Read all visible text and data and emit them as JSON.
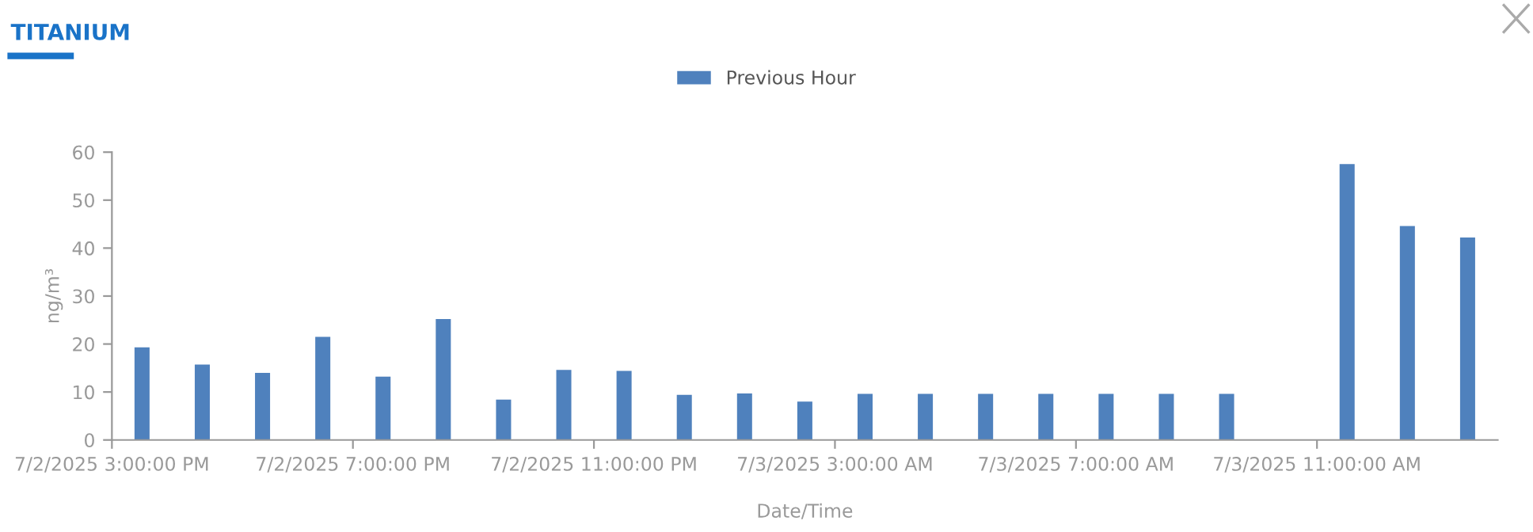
{
  "chart_data": {
    "type": "bar",
    "title": "TITANIUM",
    "xlabel": "Date/Time",
    "ylabel": "ng/m³",
    "categories": [
      "7/2/2025 3:00:00 PM",
      null,
      null,
      null,
      "7/2/2025 7:00:00 PM",
      null,
      null,
      null,
      "7/2/2025 11:00:00 PM",
      null,
      null,
      null,
      "7/3/2025 3:00:00 AM",
      null,
      null,
      null,
      "7/3/2025 7:00:00 AM",
      null,
      null,
      null,
      "7/3/2025 11:00:00 AM",
      null,
      null
    ],
    "series": [
      {
        "name": "Previous Hour",
        "color": "#4f81bd",
        "values": [
          19.3,
          15.7,
          14,
          21.5,
          13.2,
          25.2,
          8.4,
          14.6,
          14.4,
          9.4,
          9.7,
          8,
          9.6,
          9.6,
          9.6,
          9.6,
          9.6,
          9.6,
          9.6,
          null,
          57.5,
          44.6,
          42.2
        ]
      }
    ],
    "ylim": [
      0,
      60
    ],
    "yticks": [
      0,
      10,
      20,
      30,
      40,
      50,
      60
    ],
    "grid": false,
    "legend": "top"
  }
}
